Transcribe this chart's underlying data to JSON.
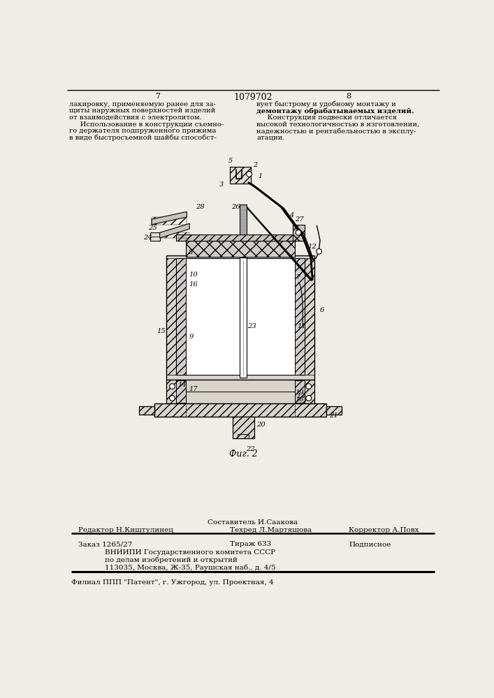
{
  "bg_color": "#f0ede6",
  "header": {
    "left_num": "7",
    "center_num": "1079702",
    "right_num": "8"
  },
  "left_text": [
    "лакировку, применяемую ранее для за-",
    "щиты наружных поверхностей изделий",
    "от взаимодействия с электролитом.",
    "     Использование в конструкции съемно-",
    "го держателя подпруженного прижима",
    "в виде быстросъемной шайбы способст-"
  ],
  "right_text_line1": "вует быстрому и удобному монтажу и",
  "right_text_bold": "демонтажу обрабатываемых изделий.",
  "right_text_rest": [
    "     Конструкция подвески отличается",
    "высокой технологичностью в изготовлении,",
    "надежностью и рентабельностью в эксплу-",
    "атации."
  ],
  "fig_caption": "Фиг. 2",
  "footer": {
    "sestavitel_label": "Составитель И.Саакова",
    "redaktor_label": "Редактор Н.Киштулинец",
    "tehred_label": "Техред Л.Мартяшова",
    "korrektor_label": "Корректор А.Повх",
    "zakaz_label": "Заказ 1265/27",
    "tirazh_label": "Тираж 633",
    "podpisnoe_label": "Подписное",
    "vniip1": "ВНИИПИ Государственного комитета СССР",
    "vniip2": "по делам изобретений и открытий",
    "vniip3": "113035, Москва, Ж-35, Раушская наб., д. 4/5",
    "filial": "Филиал ППП \"Патент\", г. Ужгород, ул. Проектная, 4"
  }
}
